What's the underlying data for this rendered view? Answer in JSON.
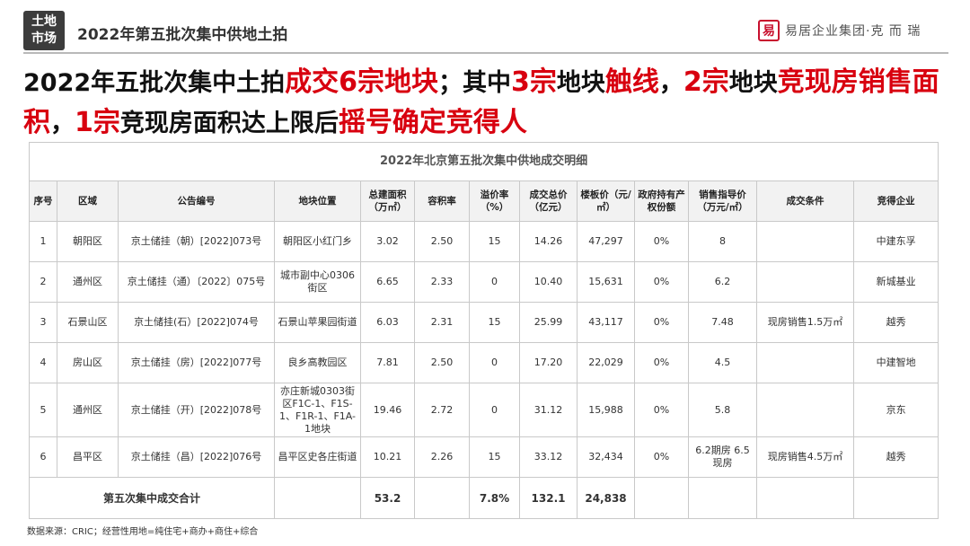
{
  "header": {
    "badge_line1": "土地",
    "badge_line2": "市场",
    "title": "2022年第五批次集中供地土拍",
    "logo_mark": "易",
    "logo_text": "易居企业集团·克 而 瑞"
  },
  "headline": {
    "p1": "2022年五批次集中土拍",
    "p2": "成交6宗地块",
    "p3": "；其中",
    "p4": "3宗",
    "p5": "地块",
    "p6": "触线",
    "p7": "，",
    "p8": "2宗",
    "p9": "地块",
    "p10": "竞现房销售面积",
    "p11": "，",
    "p12": "1宗",
    "p13": "竞现房面积达上限后",
    "p14": "摇号确定竞得人"
  },
  "table": {
    "title": "2022年北京第五批次集中供地成交明细",
    "headers": [
      "序号",
      "区域",
      "公告编号",
      "地块位置",
      "总建面积（万㎡）",
      "容积率",
      "溢价率（%）",
      "成交总价（亿元）",
      "楼板价（元/㎡）",
      "政府持有产权份额",
      "销售指导价（万元/㎡）",
      "成交条件",
      "竞得企业"
    ],
    "rows": [
      [
        "1",
        "朝阳区",
        "京土储挂（朝）[2022]073号",
        "朝阳区小红门乡",
        "3.02",
        "2.50",
        "15",
        "14.26",
        "47,297",
        "0%",
        "8",
        "",
        "中建东孚"
      ],
      [
        "2",
        "通州区",
        "京土储挂（通）〔2022〕075号",
        "城市副中心0306街区",
        "6.65",
        "2.33",
        "0",
        "10.40",
        "15,631",
        "0%",
        "6.2",
        "",
        "新城基业"
      ],
      [
        "3",
        "石景山区",
        "京土储挂(石）[2022]074号",
        "石景山苹果园街道",
        "6.03",
        "2.31",
        "15",
        "25.99",
        "43,117",
        "0%",
        "7.48",
        "现房销售1.5万㎡",
        "越秀"
      ],
      [
        "4",
        "房山区",
        "京土储挂（房）[2022]077号",
        "良乡高教园区",
        "7.81",
        "2.50",
        "0",
        "17.20",
        "22,029",
        "0%",
        "4.5",
        "",
        "中建智地"
      ],
      [
        "5",
        "通州区",
        "京土储挂（开）[2022]078号",
        "亦庄新城0303街区F1C-1、F1S-1、F1R-1、F1A-1地块",
        "19.46",
        "2.72",
        "0",
        "31.12",
        "15,988",
        "0%",
        "5.8",
        "",
        "京东"
      ],
      [
        "6",
        "昌平区",
        "京土储挂（昌）[2022]076号",
        "昌平区史各庄街道",
        "10.21",
        "2.26",
        "15",
        "33.12",
        "32,434",
        "0%",
        "6.2期房 6.5现房",
        "现房销售4.5万㎡",
        "越秀"
      ]
    ],
    "total": {
      "label": "第五次集中成交合计",
      "area": "53.2",
      "premium": "7.8%",
      "price": "132.1",
      "floor_price": "24,838"
    }
  },
  "source": "数据来源：CRIC；经营性用地=纯住宅+商办+商住+综合"
}
